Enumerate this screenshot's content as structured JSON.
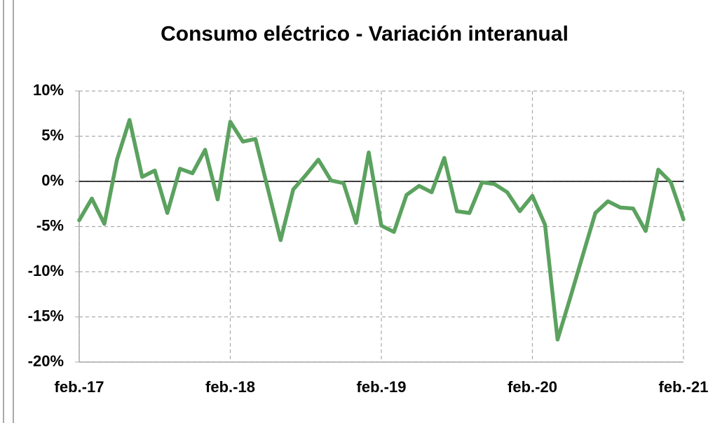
{
  "chart_data": {
    "type": "line",
    "title": "Consumo eléctrico - Variación interanual",
    "categories": [
      "feb.-17",
      null,
      null,
      null,
      null,
      null,
      null,
      null,
      null,
      null,
      null,
      null,
      "feb.-18",
      null,
      null,
      null,
      null,
      null,
      null,
      null,
      null,
      null,
      null,
      null,
      "feb.-19",
      null,
      null,
      null,
      null,
      null,
      null,
      null,
      null,
      null,
      null,
      null,
      "feb.-20",
      null,
      null,
      null,
      null,
      null,
      null,
      null,
      null,
      null,
      null,
      null,
      "feb.-21"
    ],
    "series": [
      {
        "name": "Consumo eléctrico",
        "color": "#5ba25f",
        "values": [
          -4.3,
          -1.9,
          -4.7,
          2.4,
          6.8,
          0.5,
          1.2,
          -3.5,
          1.4,
          0.9,
          3.5,
          -2.0,
          6.6,
          4.4,
          4.7,
          -0.9,
          -6.5,
          -0.9,
          0.7,
          2.4,
          0.1,
          -0.2,
          -4.6,
          3.2,
          -4.9,
          -5.6,
          -1.5,
          -0.5,
          -1.2,
          2.6,
          -3.3,
          -3.5,
          -0.1,
          -0.3,
          -1.2,
          -3.3,
          -1.6,
          -4.8,
          -17.5,
          -12.9,
          -8.2,
          -3.5,
          -2.2,
          -2.9,
          -3.0,
          -5.5,
          1.3,
          -0.1,
          -4.2
        ]
      }
    ],
    "ylim": [
      -20,
      10
    ],
    "yticks": [
      {
        "value": -20,
        "label": "-20%"
      },
      {
        "value": -15,
        "label": "-15%"
      },
      {
        "value": -10,
        "label": "-10%"
      },
      {
        "value": -5,
        "label": "-5%"
      },
      {
        "value": 0,
        "label": "0%"
      },
      {
        "value": 5,
        "label": "5%"
      },
      {
        "value": 10,
        "label": "10%"
      }
    ],
    "grid": true
  }
}
